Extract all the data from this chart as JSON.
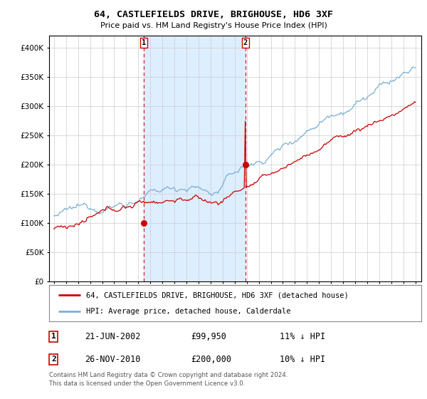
{
  "title": "64, CASTLEFIELDS DRIVE, BRIGHOUSE, HD6 3XF",
  "subtitle": "Price paid vs. HM Land Registry's House Price Index (HPI)",
  "legend_line1": "64, CASTLEFIELDS DRIVE, BRIGHOUSE, HD6 3XF (detached house)",
  "legend_line2": "HPI: Average price, detached house, Calderdale",
  "marker1_date_num": 2002.47,
  "marker1_value": 99950,
  "marker2_date_num": 2010.9,
  "marker2_value": 200000,
  "marker1_label": "1",
  "marker2_label": "2",
  "table_row1": [
    "1",
    "21-JUN-2002",
    "£99,950",
    "11% ↓ HPI"
  ],
  "table_row2": [
    "2",
    "26-NOV-2010",
    "£200,000",
    "10% ↓ HPI"
  ],
  "footnote1": "Contains HM Land Registry data © Crown copyright and database right 2024.",
  "footnote2": "This data is licensed under the Open Government Licence v3.0.",
  "red_color": "#cc0000",
  "blue_color": "#7aafd4",
  "shade_color": "#ddeeff",
  "grid_color": "#cccccc",
  "bg_color": "#ffffff",
  "ylim": [
    0,
    420000
  ],
  "yticks": [
    0,
    50000,
    100000,
    150000,
    200000,
    250000,
    300000,
    350000,
    400000
  ],
  "xlim_start": 1994.6,
  "xlim_end": 2025.5
}
